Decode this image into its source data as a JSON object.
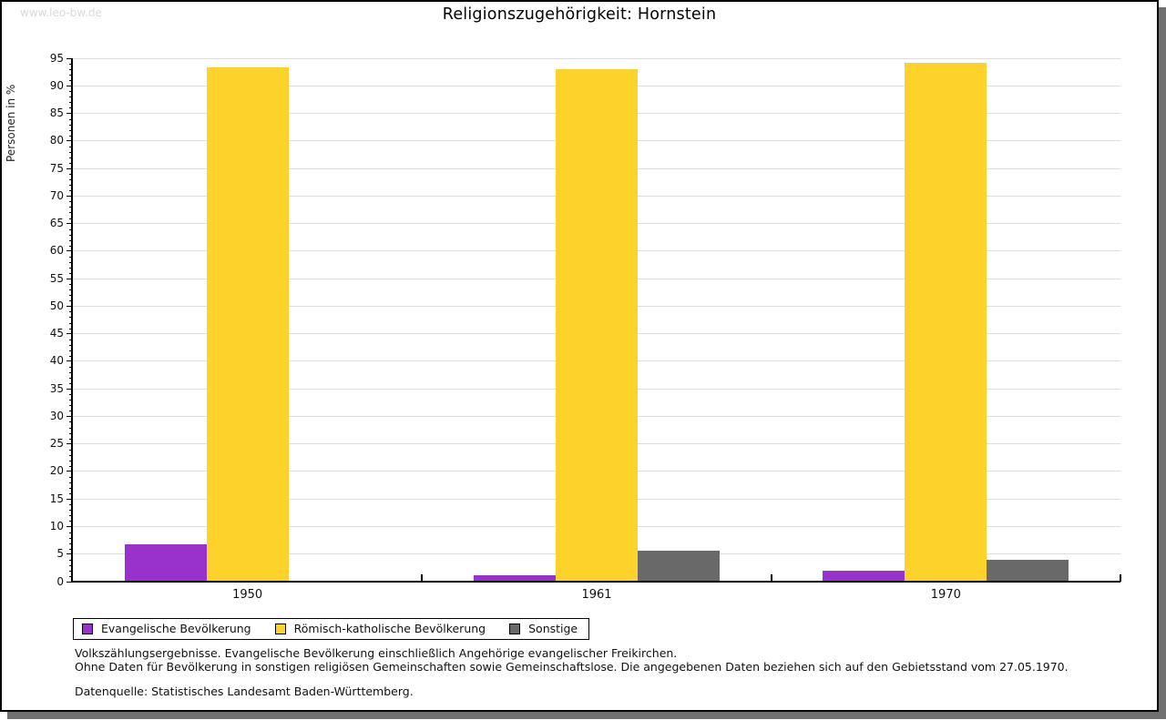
{
  "page": {
    "watermark": "www.leo-bw.de",
    "title": "Religionszugehörigkeit: Hornstein"
  },
  "chart_data": {
    "type": "bar",
    "title": "Religionszugehörigkeit: Hornstein",
    "xlabel": "",
    "ylabel": "Personen in %",
    "categories": [
      "1950",
      "1961",
      "1970"
    ],
    "series": [
      {
        "name": "Evangelische Bevölkerung",
        "color": "#9932CC",
        "values": [
          6.8,
          1.2,
          2.0
        ]
      },
      {
        "name": "Römisch-katholische Bevölkerung",
        "color": "#FCD22B",
        "values": [
          93.3,
          93.1,
          94.2
        ]
      },
      {
        "name": "Sonstige",
        "color": "#696969",
        "values": [
          0,
          5.7,
          3.9
        ]
      }
    ],
    "ylim": [
      0,
      95
    ],
    "ytick_step": 5,
    "minor_tick_step": 1,
    "grid": true,
    "gridline_color": "#dddddd",
    "legend_position": "bottom-left"
  },
  "footnotes": {
    "line1": "Volkszählungsergebnisse. Evangelische Bevölkerung einschließlich Angehörige evangelischer Freikirchen.",
    "line2": "Ohne Daten für Bevölkerung in sonstigen religiösen Gemeinschaften sowie Gemeinschaftslose. Die angegebenen Daten beziehen sich auf den Gebietsstand vom 27.05.1970.",
    "source": "Datenquelle: Statistisches Landesamt Baden-Württemberg."
  }
}
